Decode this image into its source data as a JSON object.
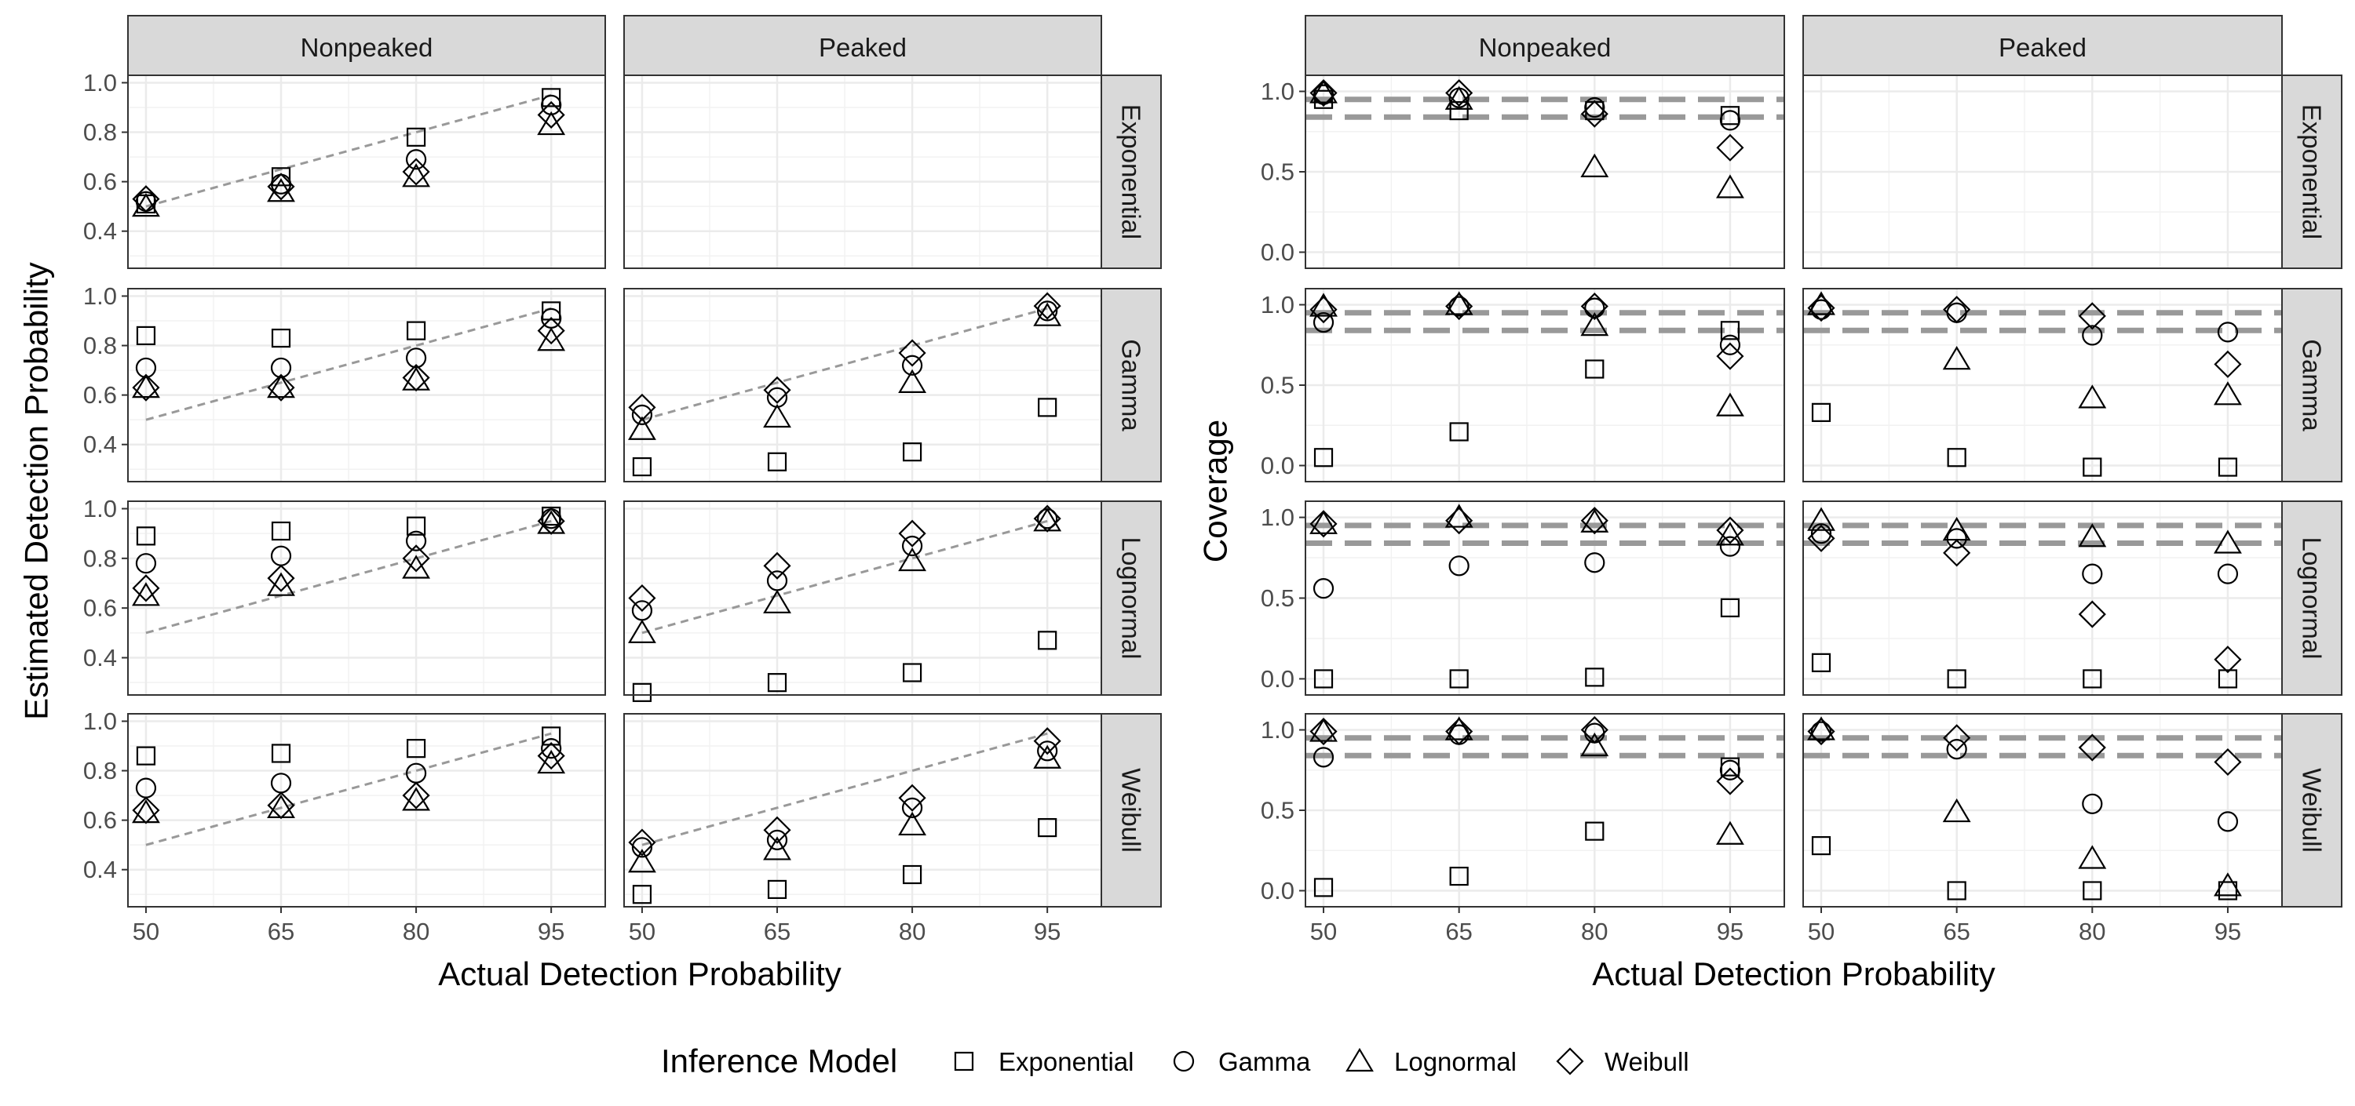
{
  "legend": {
    "title": "Inference Model",
    "models": [
      "Exponential",
      "Gamma",
      "Lognormal",
      "Weibull"
    ],
    "shapes": [
      "square",
      "circle",
      "triangle",
      "diamond"
    ]
  },
  "chart_data": [
    {
      "type": "scatter",
      "xlabel": "Actual Detection Probability",
      "ylabel": "Estimated Detection Probability",
      "column_facets": [
        "Nonpeaked",
        "Peaked"
      ],
      "row_facets": [
        "Exponential",
        "Gamma",
        "Lognormal",
        "Weibull"
      ],
      "x": [
        50,
        65,
        80,
        95
      ],
      "xlim": [
        48,
        101
      ],
      "x_ticks": [
        "50",
        "65",
        "80",
        "95"
      ],
      "ylim": [
        0.25,
        1.03
      ],
      "y_ticks": [
        "0.4",
        "0.6",
        "0.8",
        "1.0"
      ],
      "y_tick_values": [
        0.4,
        0.6,
        0.8,
        1.0
      ],
      "grid": true,
      "reference_line": {
        "style": "dashed",
        "from": [
          50,
          0.5
        ],
        "to": [
          95,
          0.95
        ]
      },
      "panels": [
        {
          "row": "Exponential",
          "col": "Nonpeaked",
          "series": [
            {
              "name": "Exponential",
              "values": [
                0.51,
                0.62,
                0.78,
                0.94
              ]
            },
            {
              "name": "Gamma",
              "values": [
                0.52,
                0.59,
                0.69,
                0.91
              ]
            },
            {
              "name": "Lognormal",
              "values": [
                0.5,
                0.56,
                0.62,
                0.83
              ]
            },
            {
              "name": "Weibull",
              "values": [
                0.53,
                0.58,
                0.64,
                0.87
              ]
            }
          ]
        },
        {
          "row": "Exponential",
          "col": "Peaked",
          "series": []
        },
        {
          "row": "Gamma",
          "col": "Nonpeaked",
          "series": [
            {
              "name": "Exponential",
              "values": [
                0.84,
                0.83,
                0.86,
                0.94
              ]
            },
            {
              "name": "Gamma",
              "values": [
                0.71,
                0.71,
                0.75,
                0.91
              ]
            },
            {
              "name": "Lognormal",
              "values": [
                0.63,
                0.63,
                0.66,
                0.82
              ]
            },
            {
              "name": "Weibull",
              "values": [
                0.63,
                0.63,
                0.67,
                0.86
              ]
            }
          ]
        },
        {
          "row": "Gamma",
          "col": "Peaked",
          "series": [
            {
              "name": "Exponential",
              "values": [
                0.31,
                0.33,
                0.37,
                0.55
              ]
            },
            {
              "name": "Gamma",
              "values": [
                0.52,
                0.59,
                0.72,
                0.94
              ]
            },
            {
              "name": "Lognormal",
              "values": [
                0.46,
                0.51,
                0.65,
                0.92
              ]
            },
            {
              "name": "Weibull",
              "values": [
                0.55,
                0.62,
                0.77,
                0.96
              ]
            }
          ]
        },
        {
          "row": "Lognormal",
          "col": "Nonpeaked",
          "series": [
            {
              "name": "Exponential",
              "values": [
                0.89,
                0.91,
                0.93,
                0.97
              ]
            },
            {
              "name": "Gamma",
              "values": [
                0.78,
                0.81,
                0.87,
                0.96
              ]
            },
            {
              "name": "Lognormal",
              "values": [
                0.65,
                0.69,
                0.76,
                0.94
              ]
            },
            {
              "name": "Weibull",
              "values": [
                0.68,
                0.72,
                0.8,
                0.95
              ]
            }
          ]
        },
        {
          "row": "Lognormal",
          "col": "Peaked",
          "series": [
            {
              "name": "Exponential",
              "values": [
                0.26,
                0.3,
                0.34,
                0.47
              ]
            },
            {
              "name": "Gamma",
              "values": [
                0.59,
                0.71,
                0.85,
                0.96
              ]
            },
            {
              "name": "Lognormal",
              "values": [
                0.5,
                0.62,
                0.79,
                0.95
              ]
            },
            {
              "name": "Weibull",
              "values": [
                0.64,
                0.77,
                0.9,
                0.96
              ]
            }
          ]
        },
        {
          "row": "Weibull",
          "col": "Nonpeaked",
          "series": [
            {
              "name": "Exponential",
              "values": [
                0.86,
                0.87,
                0.89,
                0.94
              ]
            },
            {
              "name": "Gamma",
              "values": [
                0.73,
                0.75,
                0.79,
                0.89
              ]
            },
            {
              "name": "Lognormal",
              "values": [
                0.63,
                0.65,
                0.68,
                0.83
              ]
            },
            {
              "name": "Weibull",
              "values": [
                0.64,
                0.66,
                0.7,
                0.86
              ]
            }
          ]
        },
        {
          "row": "Weibull",
          "col": "Peaked",
          "series": [
            {
              "name": "Exponential",
              "values": [
                0.3,
                0.32,
                0.38,
                0.57
              ]
            },
            {
              "name": "Gamma",
              "values": [
                0.49,
                0.52,
                0.65,
                0.88
              ]
            },
            {
              "name": "Lognormal",
              "values": [
                0.43,
                0.48,
                0.58,
                0.85
              ]
            },
            {
              "name": "Weibull",
              "values": [
                0.51,
                0.56,
                0.69,
                0.92
              ]
            }
          ]
        }
      ]
    },
    {
      "type": "scatter",
      "xlabel": "Actual Detection Probability",
      "ylabel": "Coverage",
      "column_facets": [
        "Nonpeaked",
        "Peaked"
      ],
      "row_facets": [
        "Exponential",
        "Gamma",
        "Lognormal",
        "Weibull"
      ],
      "x": [
        50,
        65,
        80,
        95
      ],
      "xlim": [
        48,
        101
      ],
      "x_ticks": [
        "50",
        "65",
        "80",
        "95"
      ],
      "ylim": [
        -0.1,
        1.1
      ],
      "y_ticks": [
        "0.0",
        "0.5",
        "1.0"
      ],
      "y_tick_values": [
        0.0,
        0.5,
        1.0
      ],
      "grid": true,
      "reference_lines": [
        {
          "style": "dashed",
          "y": 0.95
        },
        {
          "style": "dashed",
          "y": 0.84
        }
      ],
      "panels": [
        {
          "row": "Exponential",
          "col": "Nonpeaked",
          "series": [
            {
              "name": "Exponential",
              "values": [
                0.95,
                0.88,
                0.88,
                0.85
              ]
            },
            {
              "name": "Gamma",
              "values": [
                0.98,
                0.96,
                0.9,
                0.82
              ]
            },
            {
              "name": "Lognormal",
              "values": [
                0.99,
                0.95,
                0.53,
                0.4
              ]
            },
            {
              "name": "Weibull",
              "values": [
                0.99,
                0.99,
                0.86,
                0.65
              ]
            }
          ]
        },
        {
          "row": "Exponential",
          "col": "Peaked",
          "series": []
        },
        {
          "row": "Gamma",
          "col": "Nonpeaked",
          "series": [
            {
              "name": "Exponential",
              "values": [
                0.05,
                0.21,
                0.6,
                0.84
              ]
            },
            {
              "name": "Gamma",
              "values": [
                0.89,
                0.99,
                0.98,
                0.75
              ]
            },
            {
              "name": "Lognormal",
              "values": [
                0.99,
                1.0,
                0.87,
                0.37
              ]
            },
            {
              "name": "Weibull",
              "values": [
                0.97,
                0.99,
                0.99,
                0.68
              ]
            }
          ]
        },
        {
          "row": "Gamma",
          "col": "Peaked",
          "series": [
            {
              "name": "Exponential",
              "values": [
                0.33,
                0.05,
                -0.01,
                -0.01
              ]
            },
            {
              "name": "Gamma",
              "values": [
                0.97,
                0.95,
                0.81,
                0.83
              ]
            },
            {
              "name": "Lognormal",
              "values": [
                1.0,
                0.66,
                0.42,
                0.44
              ]
            },
            {
              "name": "Weibull",
              "values": [
                0.98,
                0.97,
                0.93,
                0.63
              ]
            }
          ]
        },
        {
          "row": "Lognormal",
          "col": "Nonpeaked",
          "series": [
            {
              "name": "Exponential",
              "values": [
                0.0,
                0.0,
                0.01,
                0.44
              ]
            },
            {
              "name": "Gamma",
              "values": [
                0.56,
                0.7,
                0.72,
                0.82
              ]
            },
            {
              "name": "Lognormal",
              "values": [
                0.96,
                1.0,
                0.97,
                0.89
              ]
            },
            {
              "name": "Weibull",
              "values": [
                0.96,
                0.98,
                0.98,
                0.92
              ]
            }
          ]
        },
        {
          "row": "Lognormal",
          "col": "Peaked",
          "series": [
            {
              "name": "Exponential",
              "values": [
                0.1,
                0.0,
                0.0,
                0.0
              ]
            },
            {
              "name": "Gamma",
              "values": [
                0.9,
                0.87,
                0.65,
                0.65
              ]
            },
            {
              "name": "Lognormal",
              "values": [
                0.98,
                0.92,
                0.88,
                0.84
              ]
            },
            {
              "name": "Weibull",
              "values": [
                0.87,
                0.78,
                0.4,
                0.12
              ]
            }
          ]
        },
        {
          "row": "Weibull",
          "col": "Nonpeaked",
          "series": [
            {
              "name": "Exponential",
              "values": [
                0.02,
                0.09,
                0.37,
                0.77
              ]
            },
            {
              "name": "Gamma",
              "values": [
                0.83,
                0.97,
                0.98,
                0.75
              ]
            },
            {
              "name": "Lognormal",
              "values": [
                0.99,
                1.0,
                0.9,
                0.35
              ]
            },
            {
              "name": "Weibull",
              "values": [
                0.99,
                0.99,
                1.0,
                0.68
              ]
            }
          ]
        },
        {
          "row": "Weibull",
          "col": "Peaked",
          "series": [
            {
              "name": "Exponential",
              "values": [
                0.28,
                0.0,
                0.0,
                0.0
              ]
            },
            {
              "name": "Gamma",
              "values": [
                0.99,
                0.88,
                0.54,
                0.43
              ]
            },
            {
              "name": "Lognormal",
              "values": [
                1.0,
                0.49,
                0.2,
                0.03
              ]
            },
            {
              "name": "Weibull",
              "values": [
                0.99,
                0.95,
                0.89,
                0.8
              ]
            }
          ]
        }
      ]
    }
  ]
}
